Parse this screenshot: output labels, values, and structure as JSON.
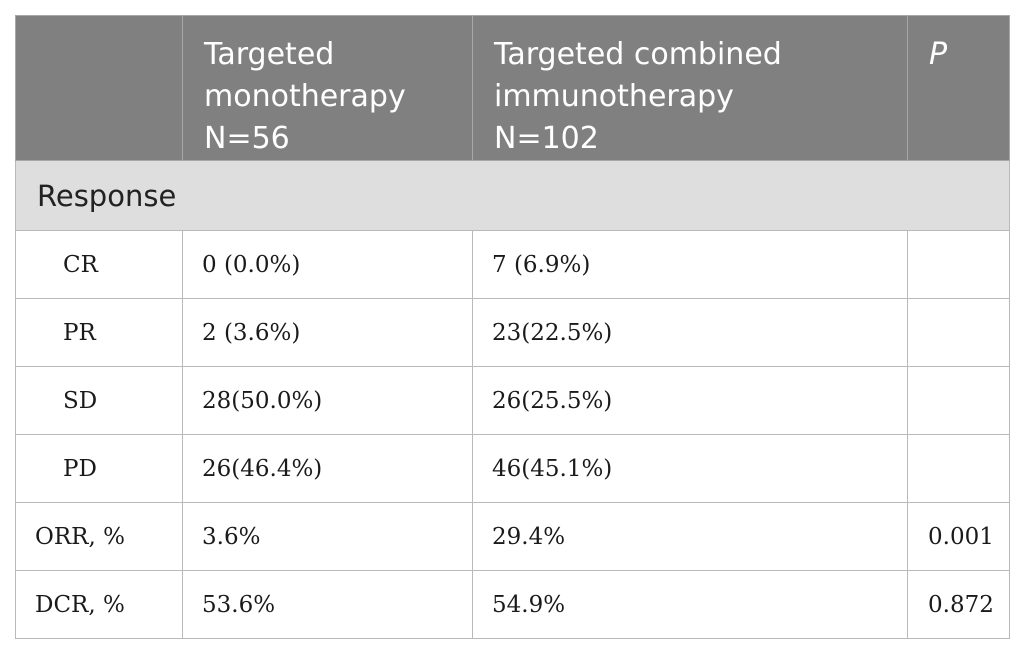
{
  "table": {
    "header": {
      "col0": "",
      "col1": [
        "Targeted",
        "monotherapy",
        "N=56"
      ],
      "col2": [
        "Targeted combined",
        "immunotherapy",
        "N=102"
      ],
      "col3": "P"
    },
    "section_label": "Response",
    "rows": [
      {
        "label": "CR",
        "mono": "0 (0.0%)",
        "combo": "7 (6.9%)",
        "p": ""
      },
      {
        "label": "PR",
        "mono": "2 (3.6%)",
        "combo": "23(22.5%)",
        "p": ""
      },
      {
        "label": "SD",
        "mono": "28(50.0%)",
        "combo": "26(25.5%)",
        "p": ""
      },
      {
        "label": "PD",
        "mono": "26(46.4%)",
        "combo": "46(45.1%)",
        "p": ""
      },
      {
        "label": "ORR, %",
        "mono": "3.6%",
        "combo": "29.4%",
        "p": "0.001"
      },
      {
        "label": "DCR, %",
        "mono": "53.6%",
        "combo": "54.9%",
        "p": "0.872"
      }
    ]
  },
  "colors": {
    "header_bg": "#808080",
    "section_bg": "#dedede",
    "border": "#b9b9b9"
  }
}
